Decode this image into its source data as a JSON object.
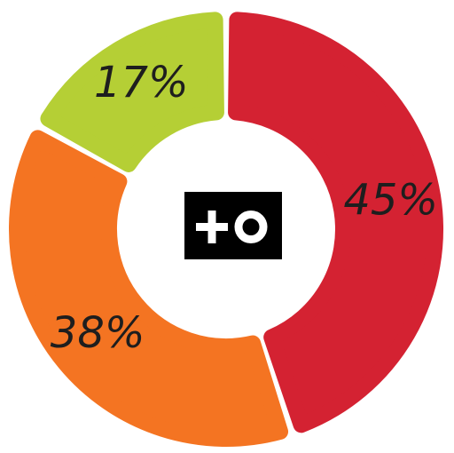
{
  "chart_data": {
    "type": "pie",
    "donut": true,
    "values": [
      45,
      38,
      17
    ],
    "value_labels": [
      "45%",
      "38%",
      "17%"
    ],
    "colors": [
      "#d42232",
      "#f47422",
      "#b5cf35"
    ]
  }
}
